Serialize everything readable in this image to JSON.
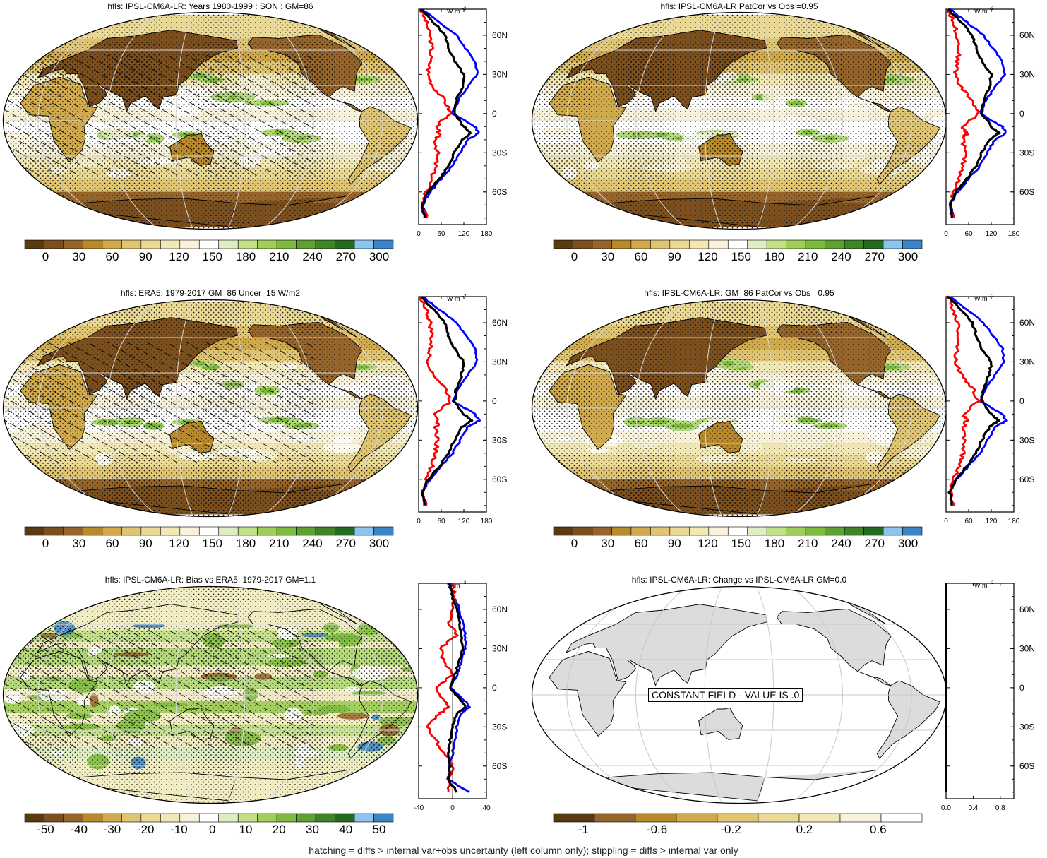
{
  "panels": [
    {
      "id": "p1",
      "title": "hfls: IPSL-CM6A-LR: Years 1980-1999 : SON : GM=86",
      "field": "model",
      "cbar_ticks": [
        "0",
        "30",
        "60",
        "90",
        "120",
        "150",
        "180",
        "210",
        "240",
        "270",
        "300"
      ],
      "zonal_xticks": [
        "0",
        "60",
        "120",
        "180"
      ],
      "zonal_unit": "W m",
      "zonal_unit_sup": "-2"
    },
    {
      "id": "p2",
      "title": "hfls: IPSL-CM6A-LR PatCor vs Obs =0.95",
      "field": "model",
      "cbar_ticks": [
        "0",
        "30",
        "60",
        "90",
        "120",
        "150",
        "180",
        "210",
        "240",
        "270",
        "300"
      ],
      "zonal_xticks": [
        "0",
        "60",
        "120",
        "180"
      ],
      "zonal_unit": "W m",
      "zonal_unit_sup": "-2"
    },
    {
      "id": "p3",
      "title": "hfls: ERA5: 1979-2017 GM=86 Uncer=15 W/m2",
      "field": "obs",
      "cbar_ticks": [
        "0",
        "30",
        "60",
        "90",
        "120",
        "150",
        "180",
        "210",
        "240",
        "270",
        "300"
      ],
      "zonal_xticks": [
        "0",
        "60",
        "120",
        "180"
      ],
      "zonal_unit": "W m",
      "zonal_unit_sup": "-2"
    },
    {
      "id": "p4",
      "title": "hfls: IPSL-CM6A-LR: GM=86 PatCor vs Obs =0.95",
      "field": "model",
      "cbar_ticks": [
        "0",
        "30",
        "60",
        "90",
        "120",
        "150",
        "180",
        "210",
        "240",
        "270",
        "300"
      ],
      "zonal_xticks": [
        "0",
        "60",
        "120",
        "180"
      ],
      "zonal_unit": "W m",
      "zonal_unit_sup": "-2"
    },
    {
      "id": "p5",
      "title": "hfls: IPSL-CM6A-LR: Bias vs ERA5: 1979-2017  GM=1.1",
      "field": "bias",
      "cbar_ticks": [
        "-50",
        "-40",
        "-30",
        "-20",
        "-10",
        "0",
        "10",
        "20",
        "30",
        "40",
        "50"
      ],
      "zonal_xticks": [
        "-40",
        "0",
        "40"
      ],
      "zonal_unit": "W m",
      "zonal_unit_sup": "-2"
    },
    {
      "id": "p6",
      "title": "hfls: IPSL-CM6A-LR: Change vs IPSL-CM6A-LR GM=0.0",
      "field": "constant",
      "cbar_ticks": [
        "-1",
        "-0.6",
        "-0.2",
        "0.2",
        "0.6"
      ],
      "zonal_xticks": [
        "0.0",
        "0.4",
        "0.8"
      ],
      "zonal_unit": "W m",
      "zonal_unit_sup": "-2",
      "constant_label": "CONSTANT FIELD - VALUE IS .0"
    }
  ],
  "lat_ticks": [
    "60N",
    "30N",
    "0",
    "30S",
    "60S"
  ],
  "footer": "hatching = diffs > internal var+obs uncertainty (left column only); stippling = diffs > internal var only",
  "colors": {
    "model_line": "#0000ff",
    "obs_line": "#ff0000",
    "mmm_line": "#000000",
    "palette_abs": [
      "#5a3a12",
      "#7b4f1e",
      "#95652b",
      "#b98a2c",
      "#d0aa4c",
      "#dfc472",
      "#ebd996",
      "#f2e8b6",
      "#f7f2d9",
      "#ffffff",
      "#ddeec2",
      "#c2e088",
      "#9fcf5a",
      "#7eba3e",
      "#5ea032",
      "#3f8428",
      "#266a20",
      "#8cc4ec",
      "#3d84c6"
    ],
    "land_gray": "#dcdcdc"
  },
  "chart_data": [
    {
      "panel": "p1",
      "type": "heatmap",
      "colorbar": {
        "levels": [
          0,
          30,
          60,
          90,
          120,
          150,
          180,
          210,
          240,
          270,
          300
        ]
      },
      "zonal_mean": {
        "type": "line",
        "xlim": [
          0,
          180
        ],
        "y": [
          80,
          70,
          60,
          50,
          40,
          30,
          20,
          10,
          0,
          -10,
          -15,
          -20,
          -30,
          -40,
          -50,
          -60,
          -70,
          -80
        ],
        "series": [
          {
            "color": "blue",
            "values": [
              10,
              55,
              100,
              125,
              150,
              155,
              130,
              105,
              90,
              150,
              160,
              130,
              110,
              90,
              60,
              30,
              10,
              20
            ]
          },
          {
            "color": "red",
            "values": [
              5,
              20,
              30,
              35,
              30,
              25,
              40,
              70,
              85,
              45,
              55,
              45,
              50,
              45,
              35,
              20,
              10,
              20
            ]
          },
          {
            "color": "black",
            "values": [
              5,
              40,
              70,
              80,
              95,
              120,
              115,
              100,
              95,
              120,
              140,
              115,
              95,
              80,
              55,
              25,
              10,
              15
            ]
          }
        ]
      }
    },
    {
      "panel": "p2",
      "type": "heatmap",
      "colorbar": {
        "levels": [
          0,
          30,
          60,
          90,
          120,
          150,
          180,
          210,
          240,
          270,
          300
        ]
      },
      "zonal_mean": {
        "type": "line",
        "xlim": [
          0,
          180
        ],
        "y": [
          80,
          70,
          60,
          50,
          40,
          30,
          20,
          10,
          0,
          -10,
          -15,
          -20,
          -30,
          -40,
          -50,
          -60,
          -70,
          -80
        ],
        "series": [
          {
            "color": "blue",
            "values": [
              10,
              55,
              100,
              125,
              150,
              155,
              130,
              105,
              90,
              150,
              160,
              130,
              110,
              90,
              60,
              30,
              10,
              20
            ]
          },
          {
            "color": "red",
            "values": [
              5,
              20,
              30,
              35,
              30,
              25,
              40,
              70,
              85,
              45,
              55,
              45,
              50,
              45,
              35,
              20,
              10,
              20
            ]
          },
          {
            "color": "black",
            "values": [
              5,
              40,
              70,
              80,
              95,
              120,
              115,
              100,
              95,
              120,
              140,
              115,
              95,
              80,
              55,
              25,
              10,
              15
            ]
          }
        ]
      }
    },
    {
      "panel": "p3",
      "type": "heatmap",
      "colorbar": {
        "levels": [
          0,
          30,
          60,
          90,
          120,
          150,
          180,
          210,
          240,
          270,
          300
        ]
      },
      "zonal_mean": {
        "type": "line",
        "xlim": [
          0,
          180
        ],
        "y": [
          80,
          70,
          60,
          50,
          40,
          30,
          20,
          10,
          0,
          -10,
          -15,
          -20,
          -30,
          -40,
          -50,
          -60,
          -70,
          -80
        ],
        "series": [
          {
            "color": "blue",
            "values": [
              10,
              55,
              100,
              125,
              150,
              155,
              130,
              105,
              90,
              150,
              160,
              130,
              110,
              90,
              60,
              30,
              10,
              20
            ]
          },
          {
            "color": "red",
            "values": [
              5,
              20,
              30,
              35,
              30,
              25,
              40,
              70,
              85,
              45,
              55,
              45,
              50,
              45,
              35,
              20,
              10,
              20
            ]
          },
          {
            "color": "black",
            "values": [
              5,
              40,
              70,
              80,
              95,
              120,
              115,
              100,
              95,
              120,
              140,
              115,
              95,
              80,
              55,
              25,
              10,
              15
            ]
          }
        ]
      }
    },
    {
      "panel": "p4",
      "type": "heatmap",
      "colorbar": {
        "levels": [
          0,
          30,
          60,
          90,
          120,
          150,
          180,
          210,
          240,
          270,
          300
        ]
      },
      "zonal_mean": {
        "type": "line",
        "xlim": [
          0,
          180
        ],
        "y": [
          80,
          70,
          60,
          50,
          40,
          30,
          20,
          10,
          0,
          -10,
          -15,
          -20,
          -30,
          -40,
          -50,
          -60,
          -70,
          -80
        ],
        "series": [
          {
            "color": "blue",
            "values": [
              10,
              55,
              100,
              125,
              150,
              155,
              130,
              105,
              90,
              150,
              160,
              130,
              110,
              90,
              60,
              30,
              10,
              20
            ]
          },
          {
            "color": "red",
            "values": [
              5,
              20,
              30,
              35,
              30,
              25,
              40,
              70,
              85,
              45,
              55,
              45,
              50,
              45,
              35,
              20,
              10,
              20
            ]
          },
          {
            "color": "black",
            "values": [
              5,
              40,
              70,
              80,
              95,
              120,
              115,
              100,
              95,
              120,
              140,
              115,
              95,
              80,
              55,
              25,
              10,
              15
            ]
          }
        ]
      }
    },
    {
      "panel": "p5",
      "type": "heatmap",
      "colorbar": {
        "levels": [
          -50,
          -40,
          -30,
          -20,
          -10,
          0,
          10,
          20,
          30,
          40,
          50
        ]
      },
      "zonal_mean": {
        "type": "line",
        "xlim": [
          -40,
          40
        ],
        "y": [
          80,
          70,
          60,
          50,
          40,
          30,
          20,
          10,
          0,
          -10,
          -15,
          -20,
          -30,
          -40,
          -50,
          -60,
          -70,
          -80
        ],
        "series": [
          {
            "color": "blue",
            "values": [
              -5,
              2,
              8,
              12,
              15,
              15,
              10,
              5,
              -2,
              15,
              20,
              10,
              5,
              3,
              0,
              -3,
              -5,
              20
            ]
          },
          {
            "color": "red",
            "values": [
              0,
              2,
              0,
              -5,
              5,
              -15,
              -10,
              0,
              -20,
              -10,
              -5,
              -15,
              -30,
              -20,
              -10,
              0,
              -5,
              -5
            ]
          },
          {
            "color": "black",
            "values": [
              -3,
              0,
              5,
              8,
              10,
              12,
              8,
              3,
              -3,
              10,
              15,
              5,
              0,
              -3,
              -5,
              -3,
              -5,
              5
            ]
          }
        ]
      }
    },
    {
      "panel": "p6",
      "type": "heatmap",
      "colorbar": {
        "levels": [
          -1,
          -0.8,
          -0.6,
          -0.4,
          -0.2,
          0,
          0.2,
          0.4,
          0.6,
          0.8,
          1
        ]
      },
      "zonal_mean": {
        "type": "line",
        "xlim": [
          0,
          1
        ],
        "y": [
          80,
          -80
        ],
        "series": [
          {
            "color": "black",
            "values": [
              0,
              0
            ]
          }
        ]
      }
    }
  ]
}
